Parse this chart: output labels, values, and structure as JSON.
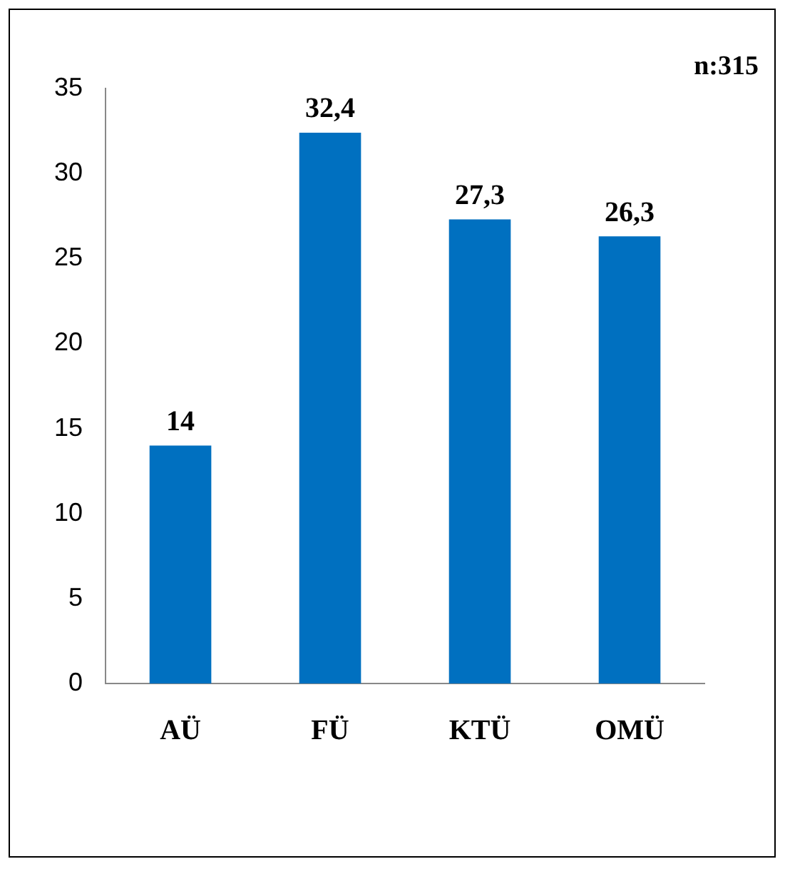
{
  "chart_data": {
    "type": "bar",
    "categories": [
      "AÜ",
      "FÜ",
      "KTÜ",
      "OMÜ"
    ],
    "values": [
      14,
      32.4,
      27.3,
      26.3
    ],
    "value_labels": [
      "14",
      "32,4",
      "27,3",
      "26,3"
    ],
    "color": "#0070c0",
    "ylim": [
      0,
      35
    ],
    "yticks": [
      0,
      5,
      10,
      15,
      20,
      25,
      30,
      35
    ],
    "grid": false,
    "legend": false,
    "annotations": [
      "n:315"
    ]
  }
}
